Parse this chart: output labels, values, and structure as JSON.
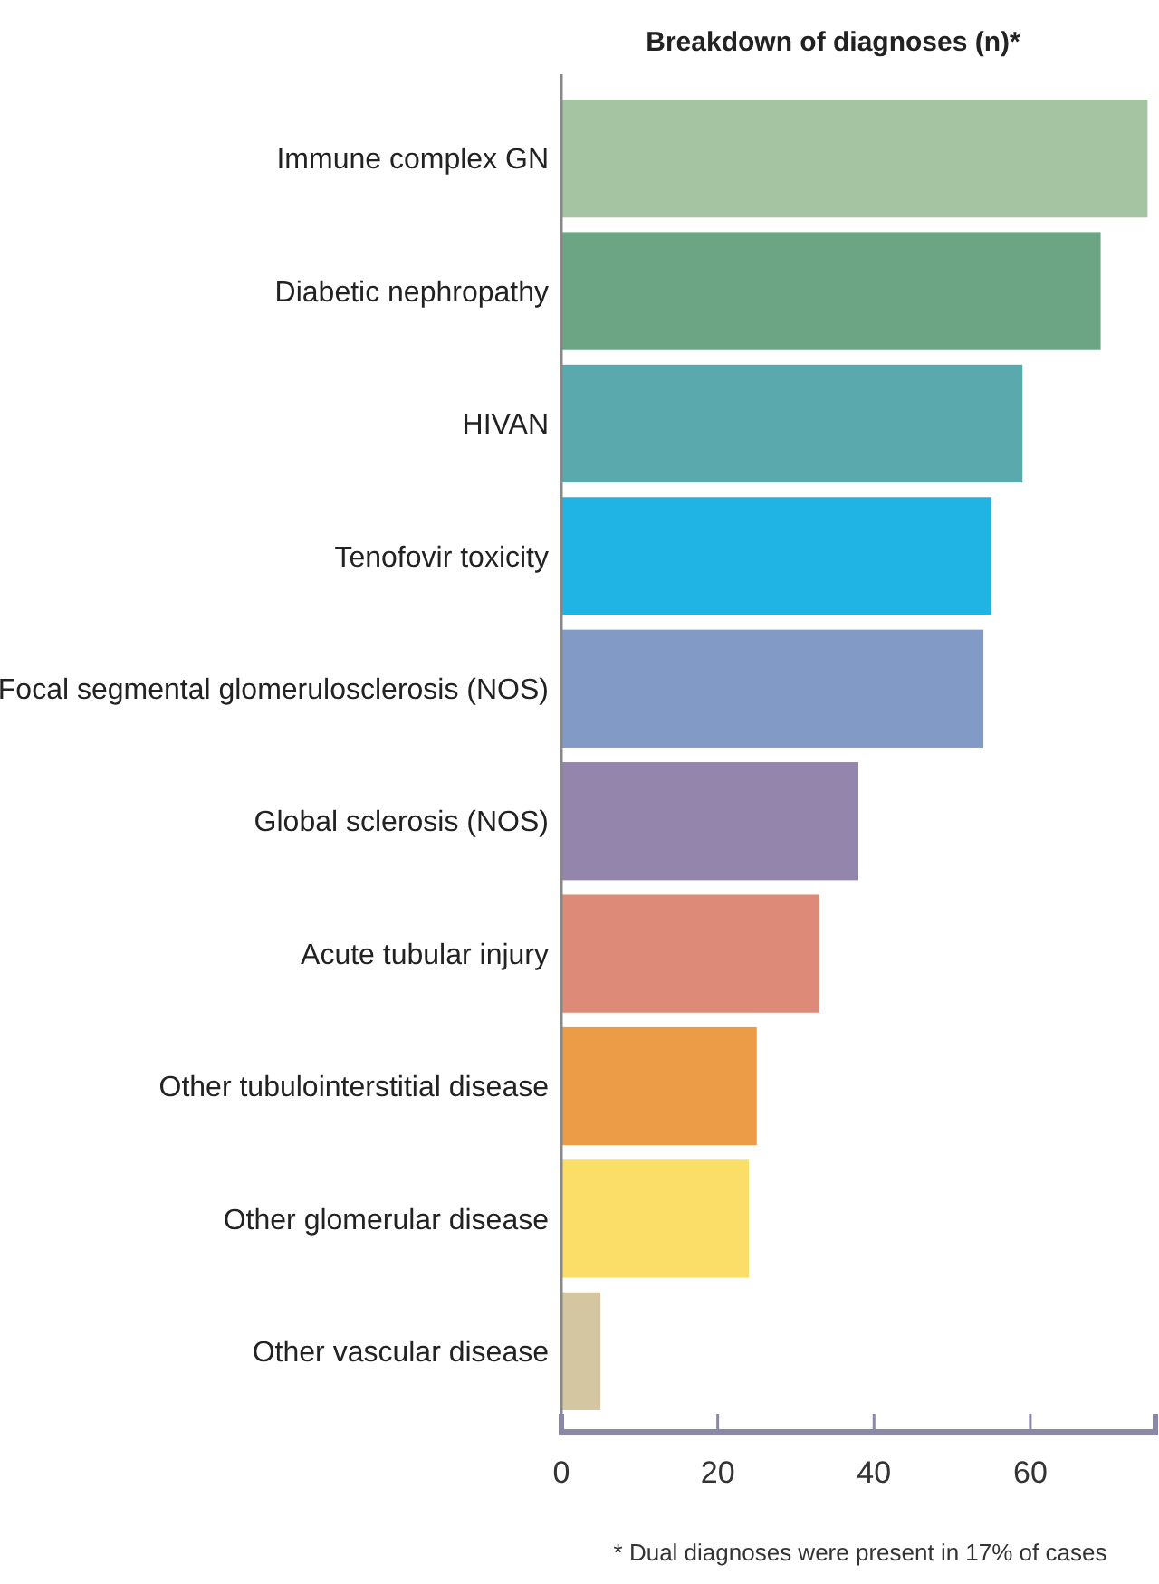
{
  "chart_data": {
    "type": "bar",
    "orientation": "horizontal",
    "title": "Breakdown of diagnoses (n)*",
    "categories": [
      "Immune complex GN",
      "Diabetic nephropathy",
      "HIVAN",
      "Tenofovir toxicity",
      "Focal segmental glomerulosclerosis (NOS)",
      "Global sclerosis (NOS)",
      "Acute tubular injury",
      "Other tubulointerstitial disease",
      "Other glomerular disease",
      "Other vascular disease"
    ],
    "values": [
      75,
      69,
      59,
      55,
      54,
      38,
      33,
      25,
      24,
      5
    ],
    "colors": [
      "#a5c4a2",
      "#6ba583",
      "#5aaaad",
      "#1fb4e4",
      "#829bc6",
      "#9485ac",
      "#dd8b78",
      "#ec9b47",
      "#fade67",
      "#d4c6a1"
    ],
    "xlim": [
      0,
      76
    ],
    "xticks": [
      0,
      20,
      40,
      60
    ],
    "grid": false,
    "annotations": [
      "* Dual diagnoses were present in 17% of cases"
    ]
  }
}
